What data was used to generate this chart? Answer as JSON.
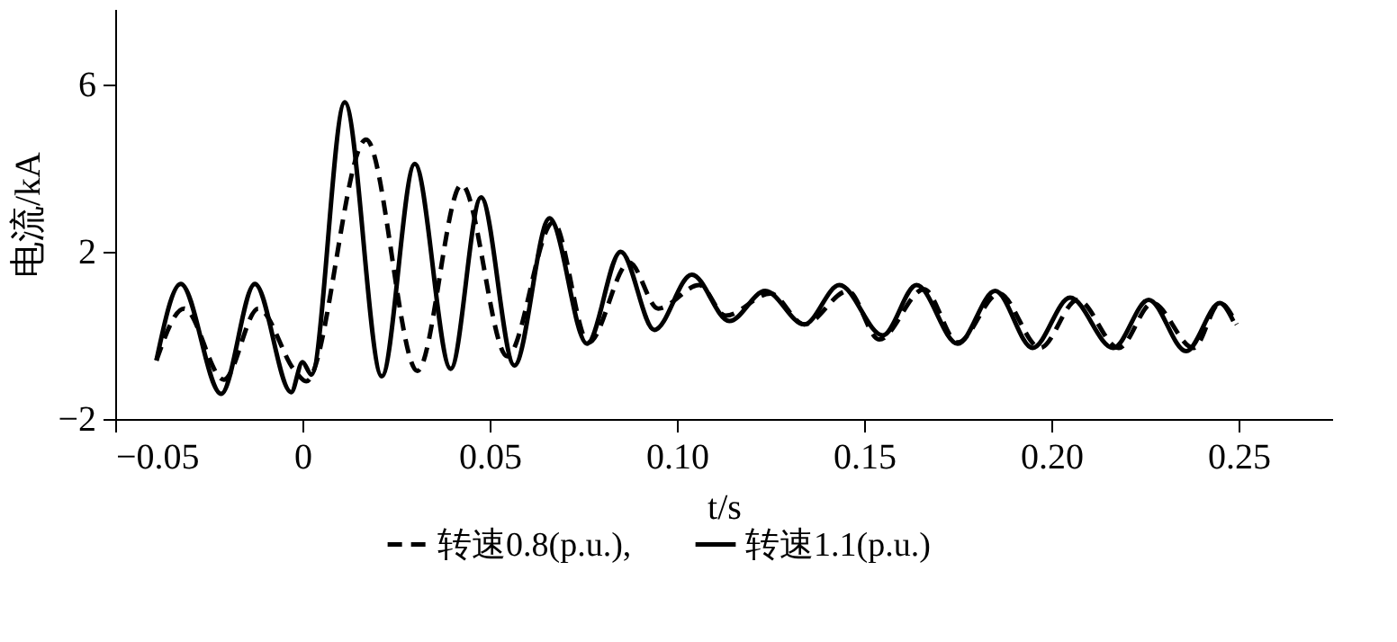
{
  "chart_data": {
    "type": "line",
    "xlabel": "t/s",
    "ylabel": "电流/kA",
    "xlim": [
      -0.05,
      0.275
    ],
    "ylim": [
      -2,
      7.8
    ],
    "xticks": [
      {
        "value": -0.05,
        "label": "−0.05"
      },
      {
        "value": 0,
        "label": "0"
      },
      {
        "value": 0.05,
        "label": "0.05"
      },
      {
        "value": 0.1,
        "label": "0.10"
      },
      {
        "value": 0.15,
        "label": "0.15"
      },
      {
        "value": 0.2,
        "label": "0.20"
      },
      {
        "value": 0.25,
        "label": "0.25"
      }
    ],
    "yticks": [
      {
        "value": -2,
        "label": "−2"
      },
      2,
      6
    ],
    "grid": false,
    "legend": "bottom",
    "marker": "none",
    "series": [
      {
        "name": "转速0.8(p.u.),",
        "color": "#000000",
        "line_style": "dashed",
        "x": [
          -0.039,
          -0.0316,
          -0.021,
          -0.0118,
          -0.002,
          0.001,
          0.017,
          0.0307,
          0.0425,
          0.0547,
          0.067,
          0.0764,
          0.0873,
          0.095,
          0.106,
          0.113,
          0.125,
          0.134,
          0.1457,
          0.154,
          0.166,
          0.175,
          0.186,
          0.197,
          0.207,
          0.218,
          0.227,
          0.238,
          0.245,
          0.2495
        ],
        "values": [
          -0.6,
          0.64,
          -1.06,
          0.64,
          -0.85,
          -1.1,
          4.68,
          -0.85,
          3.6,
          -0.5,
          2.7,
          -0.17,
          1.74,
          0.64,
          1.2,
          0.47,
          1.0,
          0.26,
          1.06,
          -0.1,
          1.1,
          -0.17,
          1.0,
          -0.3,
          0.85,
          -0.3,
          0.77,
          -0.3,
          0.77,
          0.26
        ]
      },
      {
        "name": "转速1.1(p.u.)",
        "color": "#000000",
        "line_style": "solid",
        "x": [
          -0.039,
          -0.0325,
          -0.0217,
          -0.0127,
          -0.003,
          0.0,
          0.0024,
          0.0113,
          0.0212,
          0.03,
          0.0396,
          0.0477,
          0.0566,
          0.066,
          0.076,
          0.085,
          0.094,
          0.104,
          0.114,
          0.1236,
          0.134,
          0.1434,
          0.155,
          0.164,
          0.175,
          0.185,
          0.195,
          0.205,
          0.2165,
          0.226,
          0.236,
          0.245,
          0.2486
        ],
        "values": [
          -0.6,
          1.23,
          -1.4,
          1.23,
          -1.36,
          -0.64,
          -0.94,
          5.57,
          -0.98,
          4.1,
          -0.8,
          3.3,
          -0.72,
          2.8,
          -0.2,
          2.0,
          0.13,
          1.45,
          0.34,
          1.06,
          0.26,
          1.2,
          0.0,
          1.2,
          -0.2,
          1.06,
          -0.3,
          0.9,
          -0.3,
          0.85,
          -0.38,
          0.77,
          0.34
        ]
      }
    ]
  }
}
